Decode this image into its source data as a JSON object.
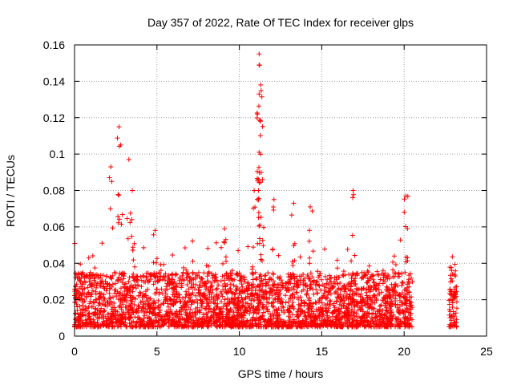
{
  "chart_data": {
    "type": "scatter",
    "title": "Day 357 of 2022, Rate Of TEC Index for receiver glps",
    "xlabel": "GPS time / hours",
    "ylabel": "ROTI / TECUs",
    "xlim": [
      0,
      25
    ],
    "ylim": [
      0,
      0.16
    ],
    "xticks": [
      0,
      5,
      10,
      15,
      20,
      25
    ],
    "xtick_labels": [
      "0",
      "5",
      "10",
      "15",
      "20",
      "25"
    ],
    "yticks": [
      0,
      0.02,
      0.04,
      0.06,
      0.08,
      0.1,
      0.12,
      0.14,
      0.16
    ],
    "ytick_labels": [
      "0",
      "0.02",
      "0.04",
      "0.06",
      "0.08",
      "0.1",
      "0.12",
      "0.14",
      "0.16"
    ],
    "grid": true,
    "marker": "+",
    "marker_color": "#ff0000",
    "data_ranges": [
      {
        "x_start": 0.0,
        "x_end": 20.5,
        "typical_min": 0.005,
        "typical_max": 0.035
      },
      {
        "x_start": 22.7,
        "x_end": 23.2,
        "typical_min": 0.005,
        "typical_max": 0.04
      }
    ],
    "notable_points": [
      {
        "x": 2.7,
        "y": 0.115
      },
      {
        "x": 2.8,
        "y": 0.105
      },
      {
        "x": 2.2,
        "y": 0.093
      },
      {
        "x": 3.3,
        "y": 0.097
      },
      {
        "x": 3.5,
        "y": 0.08
      },
      {
        "x": 11.2,
        "y": 0.155
      },
      {
        "x": 11.2,
        "y": 0.149
      },
      {
        "x": 11.3,
        "y": 0.138
      },
      {
        "x": 11.2,
        "y": 0.133
      },
      {
        "x": 11.1,
        "y": 0.122
      },
      {
        "x": 11.2,
        "y": 0.101
      },
      {
        "x": 11.4,
        "y": 0.086
      },
      {
        "x": 10.9,
        "y": 0.08
      },
      {
        "x": 12.1,
        "y": 0.075
      },
      {
        "x": 13.3,
        "y": 0.073
      },
      {
        "x": 14.3,
        "y": 0.071
      },
      {
        "x": 16.9,
        "y": 0.08
      },
      {
        "x": 20.1,
        "y": 0.077
      },
      {
        "x": 20.2,
        "y": 0.059
      },
      {
        "x": 4.9,
        "y": 0.058
      },
      {
        "x": 9.1,
        "y": 0.059
      },
      {
        "x": 19.4,
        "y": 0.044
      }
    ]
  }
}
